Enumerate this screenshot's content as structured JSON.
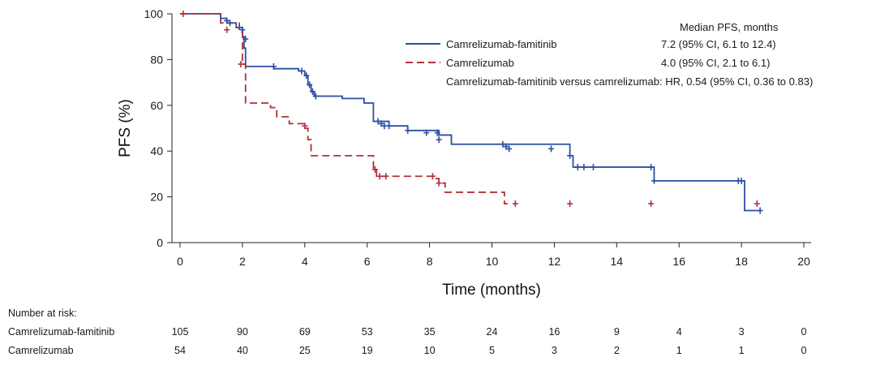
{
  "chart_data": {
    "type": "line",
    "subtype": "kaplan-meier",
    "xlabel": "Time (months)",
    "ylabel": "PFS (%)",
    "xlim": [
      0,
      20
    ],
    "ylim": [
      0,
      100
    ],
    "xticks": [
      0,
      2,
      4,
      6,
      8,
      10,
      12,
      14,
      16,
      18,
      20
    ],
    "yticks": [
      0,
      20,
      40,
      60,
      80,
      100
    ],
    "grid": false,
    "legend_placement": "top-right",
    "legend_title": "Median PFS, months",
    "series": [
      {
        "name": "Camrelizumab-famitinib",
        "color": "#2b4fa3",
        "line_style": "solid",
        "median_label": "7.2  (95% CI, 6.1 to 12.4)",
        "x": [
          0,
          1.3,
          1.5,
          1.8,
          2.0,
          2.05,
          2.1,
          2.5,
          3.0,
          3.2,
          3.8,
          4.0,
          4.1,
          4.2,
          4.3,
          4.7,
          5.2,
          5.9,
          6.2,
          6.7,
          7.3,
          8.3,
          8.7,
          12.5,
          12.6,
          15.2,
          18.1,
          18.6
        ],
        "y": [
          100,
          98,
          96,
          94,
          90,
          85,
          77,
          77,
          76,
          76,
          75,
          73,
          69,
          66,
          64,
          64,
          63,
          61,
          53,
          51,
          49,
          47,
          43,
          38,
          33,
          27,
          14,
          14
        ],
        "censor_x": [
          1.5,
          1.6,
          2.0,
          2.1,
          3.0,
          3.9,
          4.05,
          4.15,
          4.25,
          4.35,
          6.35,
          6.45,
          6.55,
          6.7,
          7.3,
          7.9,
          8.25,
          8.3,
          10.35,
          10.45,
          10.55,
          11.9,
          12.5,
          12.75,
          12.95,
          13.25,
          15.1,
          15.2,
          17.9,
          18.0,
          18.6
        ],
        "censor_y": [
          97,
          96,
          93,
          89,
          77,
          75,
          73,
          69,
          66,
          64,
          53,
          52,
          51,
          51,
          49,
          48,
          48,
          45,
          43,
          42,
          41,
          41,
          38,
          33,
          33,
          33,
          33,
          27,
          27,
          27,
          14
        ]
      },
      {
        "name": "Camrelizumab",
        "color": "#b0303a",
        "line_style": "dashed",
        "median_label": "4.0 (95% CI, 2.1 to 6.1)",
        "x": [
          0,
          1.3,
          1.9,
          2.0,
          2.1,
          2.9,
          3.1,
          3.5,
          4.0,
          4.1,
          4.2,
          6.2,
          6.3,
          8.2,
          8.3,
          8.5,
          10.4,
          10.5
        ],
        "y": [
          100,
          96,
          92,
          78,
          61,
          59,
          55,
          52,
          50,
          45,
          38,
          32,
          29,
          28,
          26,
          22,
          17,
          17
        ],
        "censor_x": [
          0.1,
          1.5,
          1.95,
          4.0,
          6.25,
          6.4,
          6.6,
          8.1,
          8.3,
          10.75,
          12.5,
          15.1,
          18.5
        ],
        "censor_y": [
          100,
          93,
          78,
          51,
          32,
          29,
          29,
          29,
          26,
          17,
          17,
          17,
          17
        ]
      }
    ],
    "annotation": "Camrelizumab-famitinib versus camrelizumab: HR, 0.54 (95% CI, 0.36 to 0.83)",
    "risk_table": {
      "title": "Number at risk:",
      "times": [
        0,
        2,
        4,
        6,
        8,
        10,
        12,
        14,
        16,
        18,
        20
      ],
      "rows": [
        {
          "name": "Camrelizumab-famitinib",
          "values": [
            105,
            90,
            69,
            53,
            35,
            24,
            16,
            9,
            4,
            3,
            0
          ]
        },
        {
          "name": "Camrelizumab",
          "values": [
            54,
            40,
            25,
            19,
            10,
            5,
            3,
            2,
            1,
            1,
            0
          ]
        }
      ]
    }
  }
}
